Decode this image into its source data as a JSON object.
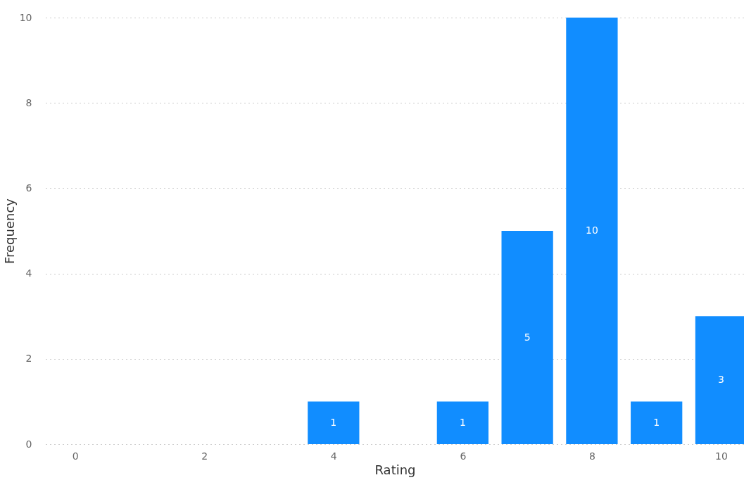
{
  "chart_data": {
    "type": "bar",
    "xlabel": "Rating",
    "ylabel": "Frequency",
    "x": [
      4,
      6,
      7,
      8,
      9,
      10
    ],
    "values": [
      1,
      1,
      5,
      10,
      1,
      3
    ],
    "color": "#118dff",
    "xlim": [
      -0.4,
      10.3
    ],
    "xticks": [
      0,
      2,
      4,
      6,
      8,
      10
    ],
    "ylim": [
      0,
      10
    ],
    "yticks": [
      0,
      2,
      4,
      6,
      8,
      10
    ],
    "grid": "y",
    "data_labels": true
  }
}
